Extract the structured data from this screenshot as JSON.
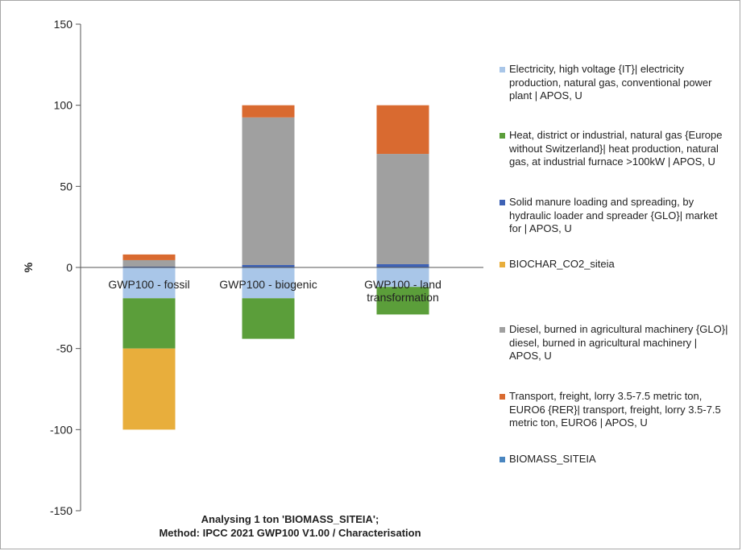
{
  "chart_data": {
    "type": "bar",
    "stacked": true,
    "ylabel": "%",
    "ylim": [
      -150,
      150
    ],
    "yticks": [
      -150,
      -100,
      -50,
      0,
      50,
      100,
      150
    ],
    "grid": false,
    "legend_position": "right",
    "categories": [
      "GWP100 - fossil",
      "GWP100 - biogenic",
      "GWP100 - land transformation"
    ],
    "series": [
      {
        "name": "Electricity, high voltage {IT}| electricity production, natural gas, conventional power plant | APOS, U",
        "color": "#a9c6e8",
        "values": [
          -19,
          -19,
          -12
        ]
      },
      {
        "name": "Heat, district or industrial, natural gas {Europe without Switzerland}| heat production, natural gas, at industrial furnace >100kW | APOS, U",
        "color": "#5b9e3a",
        "values": [
          -31,
          -25,
          -17
        ]
      },
      {
        "name": "Solid manure loading and spreading, by hydraulic loader and spreader {GLO}| market for | APOS, U",
        "color": "#3f62b5",
        "values": [
          0.5,
          1.5,
          2
        ]
      },
      {
        "name": "BIOCHAR_CO2_siteia",
        "color": "#e8ae3c",
        "values": [
          -50,
          0,
          0
        ]
      },
      {
        "name": "Diesel, burned in agricultural machinery {GLO}| diesel, burned in agricultural machinery | APOS, U",
        "color": "#a0a0a0",
        "values": [
          4,
          91,
          68
        ]
      },
      {
        "name": "Transport, freight, lorry 3.5-7.5 metric ton, EURO6 {RER}| transport, freight, lorry 3.5-7.5 metric ton, EURO6 | APOS, U",
        "color": "#d96a30",
        "values": [
          3.5,
          7.5,
          30
        ]
      },
      {
        "name": "BIOMASS_SITEIA",
        "color": "#4a86c0",
        "values": [
          0,
          0,
          0
        ]
      }
    ],
    "footer": [
      "Analysing 1 ton 'BIOMASS_SITEIA';",
      "Method: IPCC 2021 GWP100 V1.00 / Characterisation"
    ]
  }
}
